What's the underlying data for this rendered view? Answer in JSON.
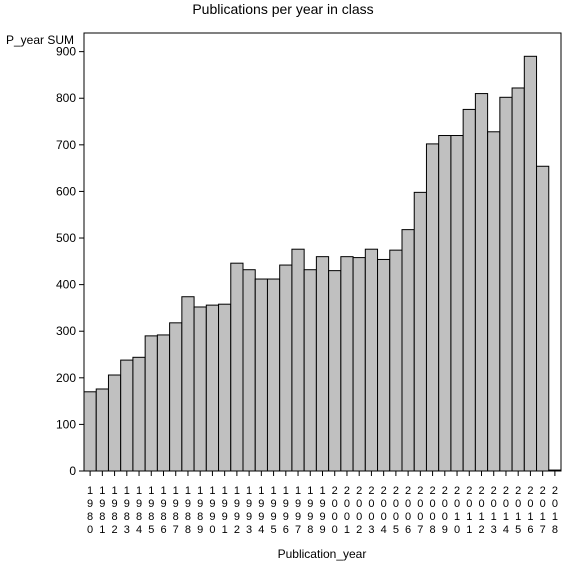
{
  "chart_data": {
    "type": "bar",
    "title": "Publications per year in class",
    "xlabel": "Publication_year",
    "ylabel": "P_year SUM",
    "ylim": [
      0,
      940
    ],
    "yticks": [
      0,
      100,
      200,
      300,
      400,
      500,
      600,
      700,
      800,
      900
    ],
    "categories": [
      "1980",
      "1981",
      "1982",
      "1983",
      "1984",
      "1985",
      "1986",
      "1987",
      "1988",
      "1989",
      "1990",
      "1991",
      "1992",
      "1993",
      "1994",
      "1995",
      "1996",
      "1997",
      "1998",
      "1999",
      "2000",
      "2001",
      "2002",
      "2003",
      "2004",
      "2005",
      "2006",
      "2007",
      "2008",
      "2009",
      "2010",
      "2011",
      "2012",
      "2013",
      "2014",
      "2015",
      "2016",
      "2017",
      "2018"
    ],
    "values": [
      170,
      176,
      206,
      238,
      244,
      290,
      292,
      318,
      374,
      352,
      356,
      358,
      446,
      432,
      412,
      412,
      442,
      476,
      432,
      460,
      430,
      460,
      458,
      476,
      454,
      474,
      518,
      598,
      702,
      720,
      720,
      776,
      810,
      728,
      802,
      822,
      890,
      654,
      2
    ],
    "bar_color": "#c0c0c0",
    "edge_color": "#000000",
    "grid": false,
    "legend": "none"
  }
}
